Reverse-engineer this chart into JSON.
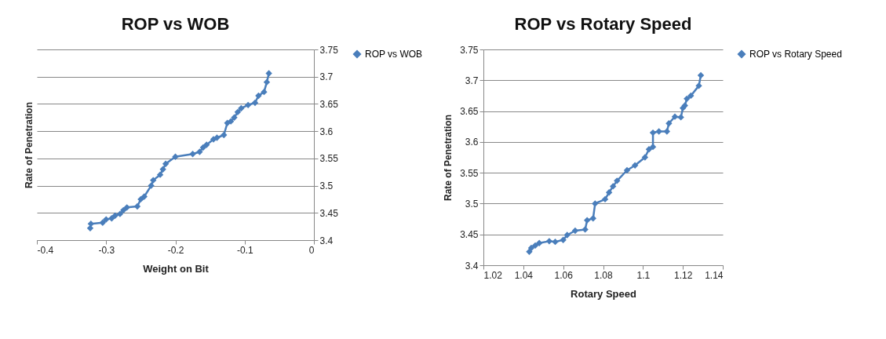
{
  "chart_data": [
    {
      "type": "line",
      "title": "ROP vs WOB",
      "xlabel": "Weight on Bit",
      "ylabel": "Rate of Penetration",
      "xlim": [
        -0.4,
        0
      ],
      "xticks": [
        -0.4,
        -0.3,
        -0.2,
        -0.1,
        0
      ],
      "ylim": [
        3.4,
        3.75
      ],
      "yticks": [
        3.4,
        3.45,
        3.5,
        3.55,
        3.6,
        3.65,
        3.7,
        3.75
      ],
      "grid": "y",
      "legend": "right",
      "marker": "diamond",
      "series": [
        {
          "name": "ROP vs WOB",
          "color": "#4a7ebb",
          "x": [
            -0.323,
            -0.322,
            -0.305,
            -0.3,
            -0.292,
            -0.287,
            -0.28,
            -0.275,
            -0.27,
            -0.255,
            -0.25,
            -0.245,
            -0.235,
            -0.232,
            -0.222,
            -0.218,
            -0.214,
            -0.2,
            -0.175,
            -0.165,
            -0.16,
            -0.155,
            -0.145,
            -0.14,
            -0.13,
            -0.125,
            -0.12,
            -0.115,
            -0.11,
            -0.105,
            -0.095,
            -0.085,
            -0.08,
            -0.072,
            -0.068,
            -0.065
          ],
          "values": [
            3.422,
            3.43,
            3.432,
            3.438,
            3.44,
            3.445,
            3.448,
            3.455,
            3.46,
            3.462,
            3.475,
            3.48,
            3.5,
            3.51,
            3.52,
            3.53,
            3.54,
            3.553,
            3.558,
            3.562,
            3.57,
            3.575,
            3.585,
            3.588,
            3.593,
            3.615,
            3.618,
            3.625,
            3.635,
            3.642,
            3.648,
            3.652,
            3.665,
            3.672,
            3.69,
            3.706
          ]
        }
      ]
    },
    {
      "type": "line",
      "title": "ROP vs Rotary Speed",
      "xlabel": "Rotary Speed",
      "ylabel": "Rate of Penetration",
      "xlim": [
        1.02,
        1.14
      ],
      "xticks": [
        1.02,
        1.04,
        1.06,
        1.08,
        1.1,
        1.12,
        1.14
      ],
      "ylim": [
        3.4,
        3.75
      ],
      "yticks": [
        3.4,
        3.45,
        3.5,
        3.55,
        3.6,
        3.65,
        3.7,
        3.75
      ],
      "grid": "y",
      "legend": "right",
      "marker": "diamond",
      "series": [
        {
          "name": "ROP vs Rotary Speed",
          "color": "#4a7ebb",
          "x": [
            1.043,
            1.044,
            1.046,
            1.048,
            1.053,
            1.056,
            1.06,
            1.062,
            1.066,
            1.071,
            1.072,
            1.075,
            1.076,
            1.081,
            1.083,
            1.085,
            1.087,
            1.092,
            1.096,
            1.101,
            1.103,
            1.105,
            1.105,
            1.108,
            1.112,
            1.113,
            1.116,
            1.119,
            1.12,
            1.121,
            1.122,
            1.124,
            1.128,
            1.129
          ],
          "values": [
            3.422,
            3.428,
            3.432,
            3.436,
            3.439,
            3.438,
            3.441,
            3.449,
            3.456,
            3.458,
            3.473,
            3.476,
            3.5,
            3.507,
            3.518,
            3.528,
            3.537,
            3.554,
            3.562,
            3.575,
            3.588,
            3.592,
            3.615,
            3.617,
            3.617,
            3.63,
            3.641,
            3.64,
            3.655,
            3.659,
            3.67,
            3.675,
            3.691,
            3.708
          ]
        }
      ]
    }
  ]
}
